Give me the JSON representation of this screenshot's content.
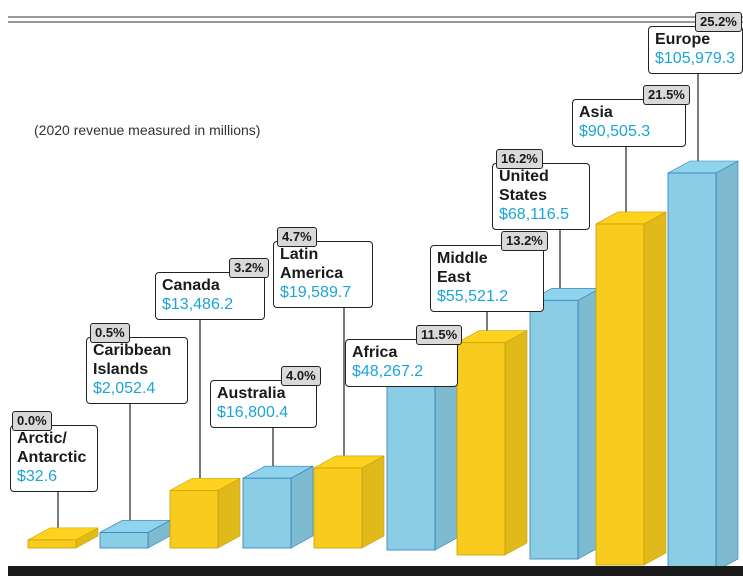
{
  "chart_data": {
    "type": "bar",
    "subtitle": "(2020 revenue measured in millions)",
    "categories": [
      "Arctic/ Antarctic",
      "Caribbean Islands",
      "Canada",
      "Australia",
      "Latin America",
      "Africa",
      "Middle East",
      "United States",
      "Asia",
      "Europe"
    ],
    "values": [
      32.6,
      2052.4,
      13486.2,
      16800.4,
      19589.7,
      48267.2,
      55521.2,
      68116.5,
      90505.3,
      105979.3
    ],
    "value_labels": [
      "$32.6",
      "$2,052.4",
      "$13,486.2",
      "$16,800.4",
      "$19,589.7",
      "$48,267.2",
      "$55,521.2",
      "$68,116.5",
      "$90,505.3",
      "$105,979.3"
    ],
    "percent_labels": [
      "0.0%",
      "0.5%",
      "3.2%",
      "4.0%",
      "4.7%",
      "11.5%",
      "13.2%",
      "16.2%",
      "21.5%",
      "25.2%"
    ],
    "bar_colors": [
      "#ffd21f",
      "#8fd3ec",
      "#ffd21f",
      "#8fd3ec",
      "#ffd21f",
      "#8fd3ec",
      "#ffd21f",
      "#8fd3ec",
      "#ffd21f",
      "#8fd3ec"
    ],
    "style": "3d-bars",
    "grid": false,
    "legend": "none"
  }
}
